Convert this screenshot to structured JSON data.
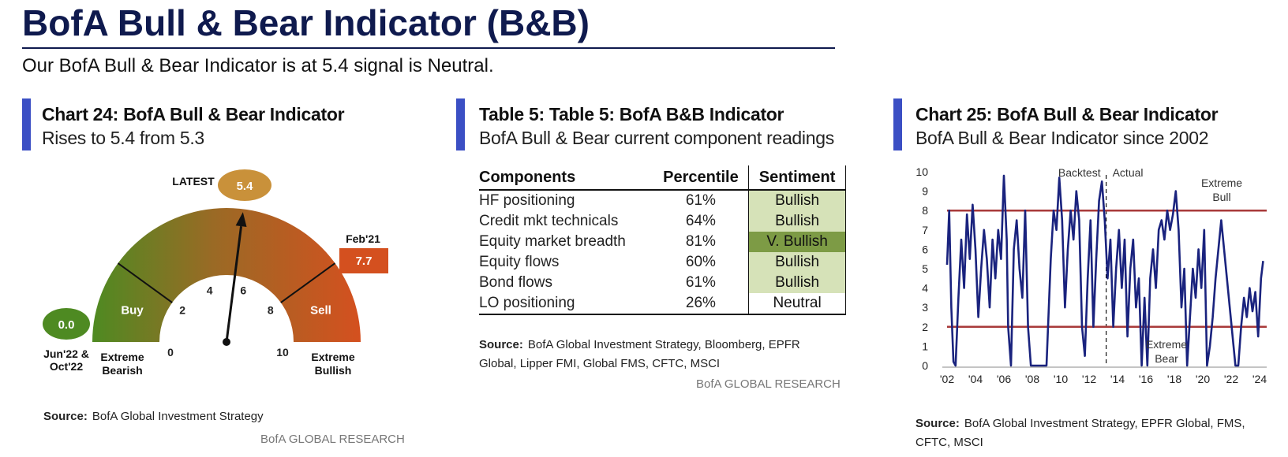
{
  "header": {
    "title": "BofA Bull & Bear Indicator (B&B)",
    "subtitle": "Our BofA Bull & Bear Indicator is at 5.4 signal is Neutral."
  },
  "panels": {
    "left": {
      "title": "Chart 24: BofA Bull & Bear Indicator",
      "subtitle": "Rises to 5.4 from 5.3",
      "source_label": "Source:",
      "source_text": "BofA Global Investment Strategy",
      "research": "BofA GLOBAL RESEARCH"
    },
    "middle": {
      "title": "Table 5: Table 5: BofA B&B Indicator",
      "subtitle": "BofA Bull & Bear current component readings",
      "source_label": "Source:",
      "source_text": "BofA Global Investment Strategy, Bloomberg, EPFR Global, Lipper FMI, Global FMS, CFTC, MSCI",
      "research": "BofA GLOBAL RESEARCH"
    },
    "right": {
      "title": "Chart 25: BofA Bull & Bear Indicator",
      "subtitle": "BofA Bull & Bear Indicator since 2002",
      "source_label": "Source:",
      "source_text": "BofA Global Investment Strategy, EPFR Global, FMS, CFTC, MSCI"
    }
  },
  "colors": {
    "title_navy": "#0f1a4e",
    "accent_bar": "#3b4fc4",
    "gauge_green": "#4e8a22",
    "gauge_red": "#d4501f",
    "latest_bubble": "#c9913a",
    "line_navy": "#1a237e",
    "threshold_red": "#a83a3a",
    "bullish_fill": "#d6e2b8",
    "v_bullish_fill": "#7d9b45"
  },
  "chart_data": [
    {
      "type": "gauge",
      "min": 0,
      "max": 10,
      "value": 5.4,
      "ticks": [
        "0",
        "2",
        "4",
        "6",
        "8",
        "10"
      ],
      "zones": [
        "Buy",
        "Sell"
      ],
      "latest_label": "LATEST",
      "latest_value": "5.4",
      "high_label": "Feb'21",
      "high_value": "7.7",
      "low_label": "Jun'22 & Oct'22",
      "low_value": "0.0",
      "left_extreme": "Extreme Bearish",
      "right_extreme": "Extreme Bullish"
    },
    {
      "type": "table",
      "columns": [
        "Components",
        "Percentile",
        "Sentiment"
      ],
      "rows": [
        [
          "HF positioning",
          "61%",
          "Bullish"
        ],
        [
          "Credit mkt technicals",
          "64%",
          "Bullish"
        ],
        [
          "Equity market breadth",
          "81%",
          "V. Bullish"
        ],
        [
          "Equity flows",
          "60%",
          "Bullish"
        ],
        [
          "Bond flows",
          "61%",
          "Bullish"
        ],
        [
          "LO positioning",
          "26%",
          "Neutral"
        ]
      ],
      "sentiment_styles": [
        "bull",
        "bull",
        "vbull",
        "bull",
        "bull",
        "neutral"
      ]
    },
    {
      "type": "line",
      "x_tick_labels": [
        "'02",
        "'04",
        "'06",
        "'08",
        "'10",
        "'12",
        "'14",
        "'16",
        "'18",
        "'20",
        "'22",
        "'24"
      ],
      "xlim": [
        2002,
        2024.5
      ],
      "ylim": [
        0,
        10
      ],
      "y_ticks": [
        "0",
        "1",
        "2",
        "3",
        "4",
        "5",
        "6",
        "7",
        "8",
        "9",
        "10"
      ],
      "thresholds": [
        8,
        2
      ],
      "divider_x": 2013.2,
      "annotations": {
        "backtest": "Backtest",
        "actual": "Actual",
        "extreme_bull": [
          "Extreme",
          "Bull"
        ],
        "extreme_bear": [
          "Extreme",
          "Bear"
        ]
      },
      "series": [
        {
          "x": [
            2002.0,
            2002.15,
            2002.3,
            2002.45,
            2002.6,
            2002.8,
            2003.0,
            2003.2,
            2003.4,
            2003.6,
            2003.8,
            2004.0,
            2004.2,
            2004.4,
            2004.6,
            2004.8,
            2005.0,
            2005.2,
            2005.4,
            2005.6,
            2005.8,
            2006.0,
            2006.2,
            2006.3,
            2006.5,
            2006.7,
            2006.9,
            2007.1,
            2007.3,
            2007.5,
            2007.7,
            2007.9,
            2008.1,
            2008.3,
            2008.6,
            2009.0,
            2009.3,
            2009.5,
            2009.7,
            2009.9,
            2010.1,
            2010.3,
            2010.5,
            2010.7,
            2010.9,
            2011.1,
            2011.3,
            2011.5,
            2011.7,
            2011.9,
            2012.1,
            2012.3,
            2012.5,
            2012.7,
            2012.9,
            2013.1,
            2013.3,
            2013.5,
            2013.7,
            2013.9,
            2014.1,
            2014.3,
            2014.5,
            2014.7,
            2014.9,
            2015.1,
            2015.3,
            2015.5,
            2015.7,
            2015.9,
            2016.1,
            2016.3,
            2016.5,
            2016.7,
            2016.9,
            2017.1,
            2017.3,
            2017.5,
            2017.7,
            2017.9,
            2018.1,
            2018.3,
            2018.5,
            2018.7,
            2018.9,
            2019.1,
            2019.3,
            2019.5,
            2019.7,
            2019.9,
            2020.1,
            2020.3,
            2020.5,
            2020.7,
            2020.9,
            2021.1,
            2021.3,
            2021.5,
            2021.7,
            2021.9,
            2022.1,
            2022.3,
            2022.5,
            2022.7,
            2022.9,
            2023.1,
            2023.3,
            2023.5,
            2023.7,
            2023.9,
            2024.1,
            2024.25
          ],
          "y": [
            5.2,
            8.0,
            3.0,
            0.2,
            0.0,
            3.5,
            6.5,
            4.0,
            7.8,
            5.5,
            8.3,
            6.0,
            2.5,
            5.0,
            7.0,
            5.5,
            3.0,
            6.5,
            4.5,
            7.0,
            5.5,
            9.8,
            6.5,
            2.0,
            0.0,
            6.0,
            7.5,
            5.0,
            3.5,
            8.0,
            2.0,
            0.0,
            0.0,
            0.0,
            0.0,
            0.0,
            5.5,
            8.0,
            7.0,
            9.7,
            7.5,
            3.0,
            6.0,
            8.0,
            6.5,
            9.0,
            7.5,
            2.0,
            0.5,
            4.5,
            7.5,
            2.0,
            5.5,
            8.5,
            9.5,
            7.5,
            4.5,
            6.5,
            2.0,
            5.0,
            7.0,
            4.0,
            6.5,
            1.5,
            5.0,
            6.5,
            3.0,
            4.5,
            0.0,
            3.5,
            0.0,
            4.5,
            6.0,
            4.0,
            7.0,
            7.5,
            6.5,
            8.0,
            7.0,
            7.8,
            9.0,
            7.0,
            3.0,
            5.0,
            0.0,
            2.5,
            5.0,
            3.5,
            6.0,
            4.0,
            7.0,
            0.0,
            1.0,
            2.5,
            4.5,
            6.0,
            7.5,
            6.0,
            4.5,
            3.0,
            1.5,
            0.0,
            0.0,
            2.0,
            3.5,
            2.5,
            4.0,
            2.8,
            3.8,
            1.5,
            4.5,
            5.4
          ]
        }
      ]
    }
  ]
}
